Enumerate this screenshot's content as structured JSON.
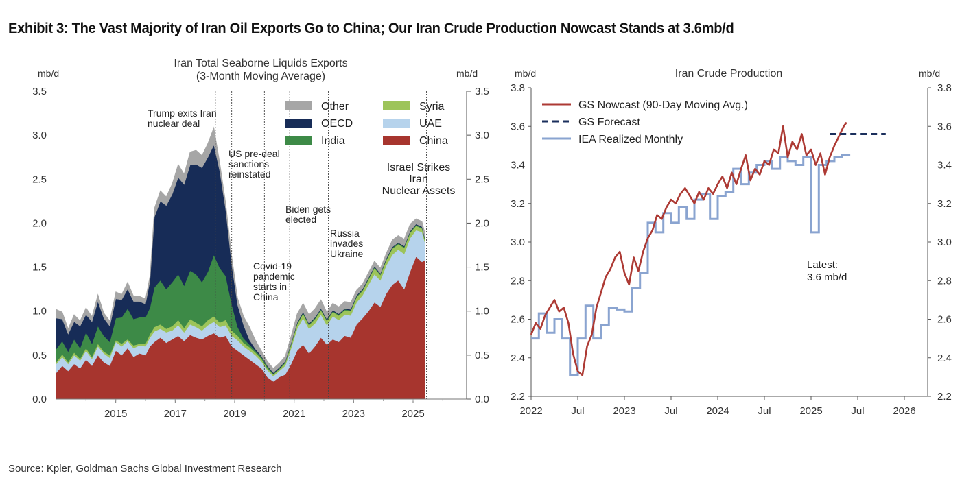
{
  "exhibit": {
    "title": "Exhibit 3: The Vast Majority of Iran Oil Exports Go to China; Our Iran Crude Production Nowcast Stands at 3.6mb/d",
    "source": "Source: Kpler, Goldman Sachs Global Investment Research"
  },
  "chart_data": [
    {
      "type": "area",
      "stacked": true,
      "title_lines": [
        "Iran Total Seaborne Liquids Exports",
        "(3-Month Moving Average)"
      ],
      "ylabel_left": "mb/d",
      "ylabel_right": "mb/d",
      "ylim": [
        0,
        3.5
      ],
      "yticks": [
        0.0,
        0.5,
        1.0,
        1.5,
        2.0,
        2.5,
        3.0,
        3.5
      ],
      "ytick_labels": [
        "0.0",
        "0.5",
        "1.0",
        "1.5",
        "2.0",
        "2.5",
        "3.0",
        "3.5"
      ],
      "xlim": [
        2013.0,
        2026.8
      ],
      "xticks": [
        2015,
        2017,
        2019,
        2021,
        2023,
        2025
      ],
      "xtick_labels": [
        "2015",
        "2017",
        "2019",
        "2021",
        "2023",
        "2025"
      ],
      "x": [
        2013.0,
        2013.2,
        2013.4,
        2013.6,
        2013.8,
        2014.0,
        2014.2,
        2014.4,
        2014.6,
        2014.8,
        2015.0,
        2015.2,
        2015.4,
        2015.6,
        2015.8,
        2016.0,
        2016.15,
        2016.3,
        2016.5,
        2016.7,
        2016.9,
        2017.1,
        2017.3,
        2017.5,
        2017.7,
        2017.9,
        2018.1,
        2018.3,
        2018.5,
        2018.7,
        2018.9,
        2019.1,
        2019.3,
        2019.5,
        2019.7,
        2019.9,
        2020.1,
        2020.3,
        2020.5,
        2020.7,
        2020.9,
        2021.1,
        2021.3,
        2021.5,
        2021.7,
        2021.9,
        2022.1,
        2022.3,
        2022.5,
        2022.7,
        2022.9,
        2023.1,
        2023.3,
        2023.5,
        2023.7,
        2023.9,
        2024.1,
        2024.3,
        2024.5,
        2024.7,
        2024.9,
        2025.1,
        2025.3,
        2025.4
      ],
      "series": [
        {
          "name": "China",
          "color": "#a7352e",
          "values": [
            0.3,
            0.38,
            0.32,
            0.4,
            0.35,
            0.45,
            0.38,
            0.5,
            0.42,
            0.38,
            0.55,
            0.5,
            0.58,
            0.48,
            0.52,
            0.5,
            0.6,
            0.65,
            0.7,
            0.64,
            0.68,
            0.72,
            0.66,
            0.73,
            0.7,
            0.68,
            0.72,
            0.75,
            0.7,
            0.72,
            0.6,
            0.55,
            0.5,
            0.45,
            0.4,
            0.35,
            0.25,
            0.2,
            0.25,
            0.28,
            0.4,
            0.55,
            0.62,
            0.52,
            0.6,
            0.7,
            0.62,
            0.68,
            0.65,
            0.72,
            0.7,
            0.85,
            0.92,
            1.0,
            1.1,
            1.05,
            1.2,
            1.3,
            1.35,
            1.25,
            1.45,
            1.62,
            1.56,
            1.58
          ]
        },
        {
          "name": "UAE",
          "color": "#b6d3ec",
          "values": [
            0.1,
            0.1,
            0.08,
            0.1,
            0.09,
            0.1,
            0.08,
            0.1,
            0.1,
            0.09,
            0.1,
            0.1,
            0.08,
            0.1,
            0.09,
            0.1,
            0.1,
            0.12,
            0.1,
            0.12,
            0.1,
            0.12,
            0.1,
            0.12,
            0.12,
            0.1,
            0.12,
            0.13,
            0.12,
            0.12,
            0.12,
            0.12,
            0.1,
            0.1,
            0.1,
            0.08,
            0.08,
            0.06,
            0.07,
            0.1,
            0.18,
            0.25,
            0.3,
            0.28,
            0.26,
            0.26,
            0.22,
            0.26,
            0.25,
            0.24,
            0.25,
            0.25,
            0.26,
            0.3,
            0.32,
            0.3,
            0.32,
            0.34,
            0.35,
            0.4,
            0.38,
            0.3,
            0.34,
            0.2
          ]
        },
        {
          "name": "Syria",
          "color": "#9dc45a",
          "values": [
            0.02,
            0.03,
            0.02,
            0.03,
            0.02,
            0.03,
            0.02,
            0.03,
            0.02,
            0.03,
            0.02,
            0.03,
            0.02,
            0.03,
            0.02,
            0.03,
            0.04,
            0.05,
            0.05,
            0.04,
            0.05,
            0.06,
            0.05,
            0.06,
            0.05,
            0.05,
            0.06,
            0.06,
            0.05,
            0.06,
            0.06,
            0.05,
            0.04,
            0.04,
            0.03,
            0.03,
            0.02,
            0.02,
            0.02,
            0.03,
            0.04,
            0.05,
            0.05,
            0.04,
            0.05,
            0.05,
            0.05,
            0.05,
            0.05,
            0.05,
            0.05,
            0.06,
            0.05,
            0.06,
            0.07,
            0.06,
            0.06,
            0.07,
            0.06,
            0.07,
            0.06,
            0.05,
            0.04,
            0.03
          ]
        },
        {
          "name": "India",
          "color": "#3d8a47",
          "values": [
            0.15,
            0.15,
            0.12,
            0.15,
            0.12,
            0.18,
            0.15,
            0.2,
            0.18,
            0.15,
            0.25,
            0.3,
            0.35,
            0.3,
            0.3,
            0.3,
            0.3,
            0.45,
            0.5,
            0.45,
            0.5,
            0.52,
            0.48,
            0.55,
            0.55,
            0.5,
            0.55,
            0.7,
            0.62,
            0.5,
            0.3,
            0.1,
            0.05,
            0.03,
            0.02,
            0.02,
            0.02,
            0.01,
            0.01,
            0.01,
            0.01,
            0.01,
            0.01,
            0.01,
            0.01,
            0.01,
            0.01,
            0.01,
            0.01,
            0.01,
            0.01,
            0.01,
            0.01,
            0.01,
            0.01,
            0.01,
            0.01,
            0.01,
            0.01,
            0.01,
            0.01,
            0.01,
            0.01,
            0.01
          ]
        },
        {
          "name": "OECD",
          "color": "#172c57",
          "values": [
            0.35,
            0.25,
            0.2,
            0.2,
            0.25,
            0.2,
            0.25,
            0.28,
            0.2,
            0.18,
            0.22,
            0.2,
            0.22,
            0.2,
            0.18,
            0.15,
            0.3,
            0.8,
            0.9,
            0.95,
            1.0,
            1.1,
            1.15,
            1.2,
            1.25,
            1.3,
            1.3,
            1.25,
            1.1,
            0.75,
            0.45,
            0.25,
            0.15,
            0.05,
            0.02,
            0.01,
            0.01,
            0.01,
            0.01,
            0.01,
            0.01,
            0.01,
            0.01,
            0.01,
            0.01,
            0.01,
            0.01,
            0.01,
            0.01,
            0.01,
            0.01,
            0.01,
            0.01,
            0.01,
            0.01,
            0.01,
            0.01,
            0.01,
            0.01,
            0.01,
            0.01,
            0.01,
            0.01,
            0.01
          ]
        },
        {
          "name": "Other",
          "color": "#a6a6a6",
          "values": [
            0.1,
            0.08,
            0.06,
            0.08,
            0.06,
            0.08,
            0.06,
            0.08,
            0.06,
            0.06,
            0.08,
            0.06,
            0.08,
            0.06,
            0.06,
            0.06,
            0.06,
            0.1,
            0.12,
            0.1,
            0.12,
            0.15,
            0.12,
            0.15,
            0.16,
            0.14,
            0.16,
            0.2,
            0.1,
            0.08,
            0.1,
            0.08,
            0.1,
            0.15,
            0.1,
            0.06,
            0.05,
            0.05,
            0.05,
            0.06,
            0.08,
            0.1,
            0.1,
            0.1,
            0.1,
            0.1,
            0.08,
            0.08,
            0.08,
            0.08,
            0.08,
            0.06,
            0.06,
            0.06,
            0.06,
            0.06,
            0.06,
            0.08,
            0.08,
            0.08,
            0.08,
            0.06,
            0.06,
            0.06
          ]
        }
      ],
      "legend_order": [
        "Other",
        "Syria",
        "OECD",
        "UAE",
        "India",
        "China"
      ],
      "events": [
        {
          "x": 2018.35,
          "lines": [
            "Trump exits Iran",
            "nuclear deal"
          ]
        },
        {
          "x": 2018.9,
          "lines": [
            "US pre-deal",
            "sanctions",
            "reinstated"
          ]
        },
        {
          "x": 2020.0,
          "lines": [
            "Covid-19",
            "pandemic",
            "starts in",
            "China"
          ]
        },
        {
          "x": 2020.85,
          "lines": [
            "Biden gets",
            "elected"
          ]
        },
        {
          "x": 2022.15,
          "lines": [
            "Russia",
            "invades",
            "Ukraine"
          ]
        },
        {
          "x": 2025.45,
          "lines": [
            "Israel Strikes",
            "Iran",
            "Nuclear Assets"
          ]
        }
      ]
    },
    {
      "type": "line",
      "title": "Iran Crude Production",
      "ylabel_left": "mb/d",
      "ylabel_right": "mb/d",
      "ylim": [
        2.2,
        3.8
      ],
      "yticks": [
        2.2,
        2.4,
        2.6,
        2.8,
        3.0,
        3.2,
        3.4,
        3.6,
        3.8
      ],
      "ytick_labels": [
        "2.2",
        "2.4",
        "2.6",
        "2.8",
        "3.0",
        "3.2",
        "3.4",
        "3.6",
        "3.8"
      ],
      "xlim": [
        2022.0,
        2026.25
      ],
      "xticks": [
        2022.0,
        2022.5,
        2023.0,
        2023.5,
        2024.0,
        2024.5,
        2025.0,
        2025.5,
        2026.0
      ],
      "xtick_labels": [
        "2022",
        "Jul",
        "2023",
        "Jul",
        "2024",
        "Jul",
        "2025",
        "Jul",
        "2026"
      ],
      "series": [
        {
          "name": "GS Nowcast (90-Day Moving Avg.)",
          "color": "#ad3a34",
          "style": "solid",
          "x": [
            2022.0,
            2022.05,
            2022.1,
            2022.15,
            2022.2,
            2022.25,
            2022.3,
            2022.35,
            2022.4,
            2022.45,
            2022.5,
            2022.55,
            2022.6,
            2022.65,
            2022.7,
            2022.75,
            2022.8,
            2022.85,
            2022.9,
            2022.95,
            2023.0,
            2023.05,
            2023.1,
            2023.15,
            2023.2,
            2023.25,
            2023.3,
            2023.35,
            2023.4,
            2023.45,
            2023.5,
            2023.55,
            2023.6,
            2023.65,
            2023.7,
            2023.75,
            2023.8,
            2023.85,
            2023.9,
            2023.95,
            2024.0,
            2024.05,
            2024.1,
            2024.15,
            2024.2,
            2024.25,
            2024.3,
            2024.35,
            2024.4,
            2024.45,
            2024.5,
            2024.55,
            2024.6,
            2024.65,
            2024.7,
            2024.75,
            2024.8,
            2024.85,
            2024.9,
            2024.95,
            2025.0,
            2025.05,
            2025.1,
            2025.15,
            2025.2,
            2025.25,
            2025.3,
            2025.35,
            2025.38
          ],
          "y": [
            2.52,
            2.58,
            2.55,
            2.62,
            2.66,
            2.7,
            2.64,
            2.66,
            2.58,
            2.42,
            2.33,
            2.31,
            2.46,
            2.52,
            2.66,
            2.74,
            2.82,
            2.86,
            2.92,
            2.95,
            2.84,
            2.78,
            2.92,
            2.85,
            2.95,
            3.02,
            3.06,
            3.14,
            3.12,
            3.18,
            3.22,
            3.2,
            3.25,
            3.28,
            3.24,
            3.2,
            3.26,
            3.22,
            3.28,
            3.25,
            3.3,
            3.34,
            3.28,
            3.36,
            3.3,
            3.38,
            3.45,
            3.32,
            3.38,
            3.35,
            3.42,
            3.4,
            3.48,
            3.46,
            3.6,
            3.44,
            3.52,
            3.48,
            3.56,
            3.45,
            3.48,
            3.4,
            3.46,
            3.35,
            3.44,
            3.5,
            3.55,
            3.6,
            3.62
          ]
        },
        {
          "name": "GS Forecast",
          "color": "#1b2f5c",
          "style": "dashed",
          "x": [
            2025.2,
            2025.8
          ],
          "y": [
            3.56,
            3.56
          ]
        },
        {
          "name": "IEA Realized Monthly",
          "color": "#8aa4d0",
          "style": "step",
          "x": [
            2022.0,
            2022.083,
            2022.167,
            2022.25,
            2022.333,
            2022.417,
            2022.5,
            2022.583,
            2022.667,
            2022.75,
            2022.833,
            2022.917,
            2023.0,
            2023.083,
            2023.167,
            2023.25,
            2023.333,
            2023.417,
            2023.5,
            2023.583,
            2023.667,
            2023.75,
            2023.833,
            2023.917,
            2024.0,
            2024.083,
            2024.167,
            2024.25,
            2024.333,
            2024.417,
            2024.5,
            2024.583,
            2024.667,
            2024.75,
            2024.833,
            2024.917,
            2025.0,
            2025.083,
            2025.167,
            2025.25,
            2025.333
          ],
          "y": [
            2.5,
            2.63,
            2.53,
            2.6,
            2.5,
            2.31,
            2.5,
            2.67,
            2.5,
            2.57,
            2.66,
            2.65,
            2.64,
            2.76,
            2.84,
            3.1,
            3.05,
            3.15,
            3.1,
            3.18,
            3.12,
            3.22,
            3.25,
            3.12,
            3.24,
            3.26,
            3.38,
            3.3,
            3.36,
            3.4,
            3.42,
            3.38,
            3.44,
            3.42,
            3.4,
            3.44,
            3.05,
            3.4,
            3.42,
            3.44,
            3.45
          ]
        }
      ],
      "annotation": [
        "Latest:",
        "3.6 mb/d"
      ]
    }
  ]
}
